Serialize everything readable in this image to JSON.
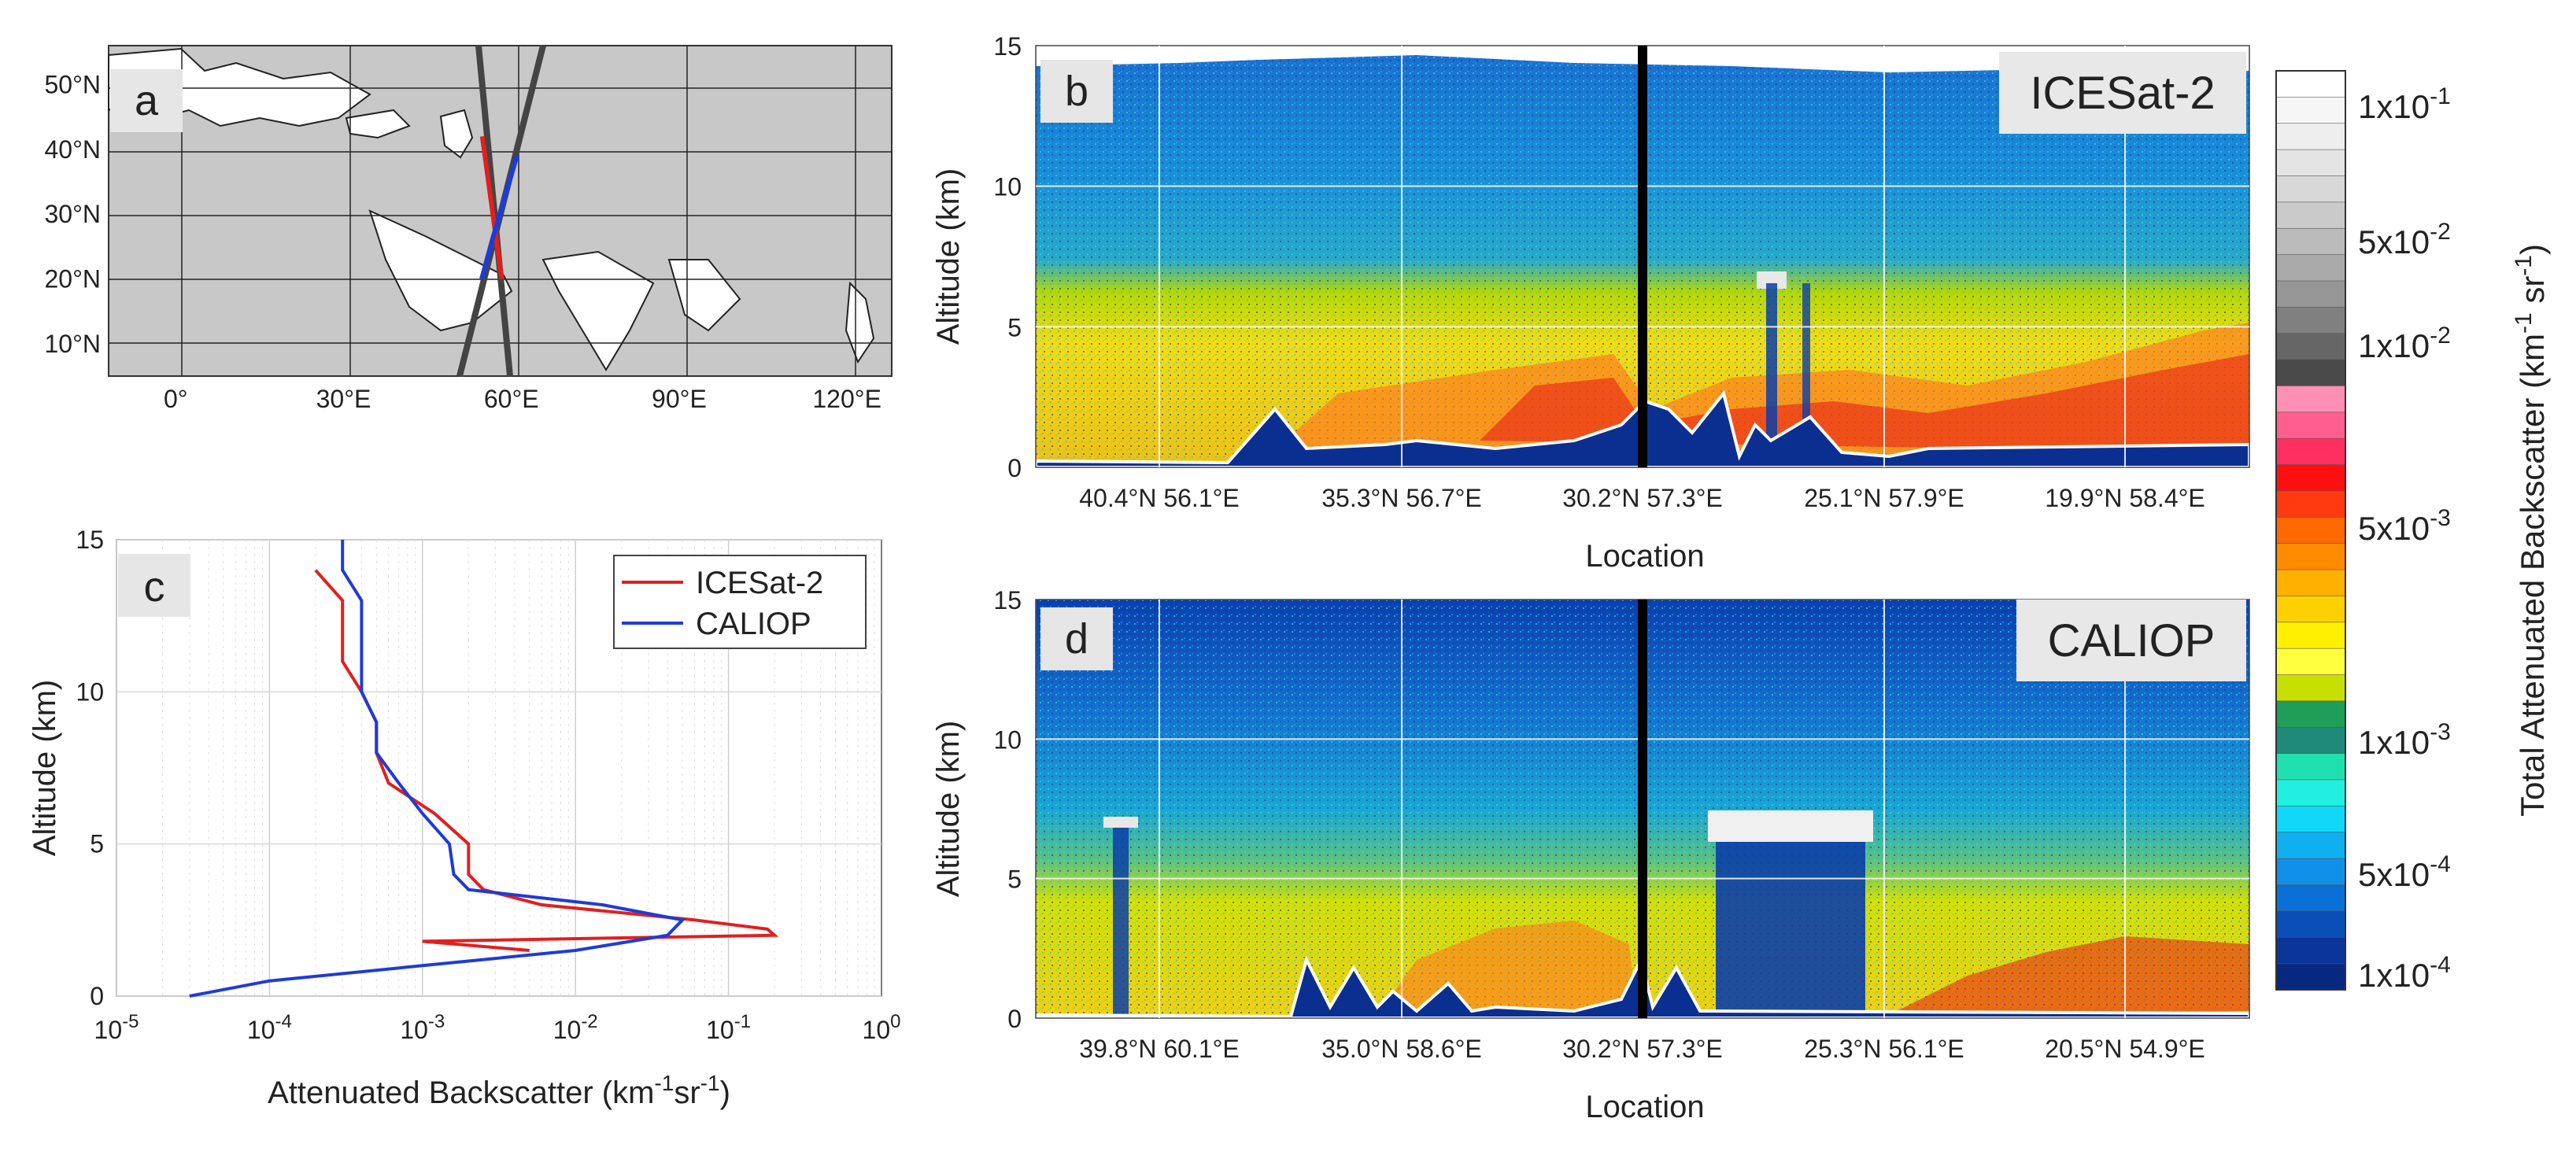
{
  "figure": {
    "panels": {
      "a": "a",
      "b": "b",
      "c": "c",
      "d": "d"
    },
    "instruments": {
      "icesat2": "ICESat-2",
      "caliop": "CALIOP"
    }
  },
  "chart_data": [
    {
      "panel": "a",
      "type": "map",
      "lon_ticks": [
        "0°",
        "30°E",
        "60°E",
        "90°E",
        "120°E"
      ],
      "lat_ticks": [
        "10°N",
        "20°N",
        "30°N",
        "40°N",
        "50°N"
      ],
      "lon_range": [
        -12,
        128
      ],
      "lat_range": [
        5,
        56
      ],
      "tracks": [
        {
          "name": "ICESat-2",
          "color": "#e02020",
          "lat": [
            42,
            35,
            28,
            20
          ],
          "lon": [
            54.8,
            55.9,
            57.0,
            58.3
          ]
        },
        {
          "name": "CALIOP",
          "color": "#1f3bd6",
          "lat": [
            39,
            32,
            26,
            20
          ],
          "lon": [
            61.0,
            58.6,
            56.6,
            54.7
          ]
        }
      ]
    },
    {
      "panel": "b",
      "type": "heatmap",
      "title": "ICESat-2",
      "ylabel": "Altitude (km)",
      "xlabel": "Location",
      "ylim": [
        0,
        15
      ],
      "yticks": [
        0,
        5,
        10,
        15
      ],
      "xticks": [
        "40.4°N 56.1°E",
        "35.3°N 56.7°E",
        "30.2°N 57.3°E",
        "25.1°N 57.9°E",
        "19.9°N 58.4°E"
      ],
      "marker_position": "30.2°N 57.3°E"
    },
    {
      "panel": "c",
      "type": "line",
      "ylabel": "Altitude (km)",
      "xlabel_main": "Attenuated Backscatter (km",
      "xlabel_sup1": "-1",
      "xlabel_mid": "sr",
      "xlabel_sup2": "-1",
      "xlabel_end": ")",
      "xscale": "log",
      "xlim_exp": [
        -5,
        0
      ],
      "xtick_exps": [
        "-5",
        "-4",
        "-3",
        "-2",
        "-1",
        "0"
      ],
      "xtick_base": "10",
      "ylim": [
        0,
        15
      ],
      "yticks": [
        0,
        5,
        10,
        15
      ],
      "legend": [
        "ICESat-2",
        "CALIOP"
      ],
      "series": [
        {
          "name": "ICESat-2",
          "color": "#e02020",
          "altitude": [
            14.0,
            13.0,
            12.0,
            11.0,
            10.0,
            9.0,
            8.0,
            7.0,
            6.0,
            5.0,
            4.0,
            3.5,
            3.0,
            2.5,
            2.2,
            2.0,
            1.8,
            1.5
          ],
          "value": [
            0.0002,
            0.0003,
            0.0003,
            0.0003,
            0.0004,
            0.0005,
            0.0005,
            0.0006,
            0.0012,
            0.002,
            0.002,
            0.0025,
            0.006,
            0.06,
            0.18,
            0.2,
            0.001,
            0.005
          ]
        },
        {
          "name": "CALIOP",
          "color": "#1f3bd6",
          "altitude": [
            15.0,
            14.0,
            13.0,
            12.0,
            11.0,
            10.0,
            9.0,
            8.0,
            7.0,
            6.0,
            5.0,
            4.0,
            3.5,
            3.0,
            2.5,
            2.0,
            1.5,
            1.0,
            0.5,
            0.0
          ],
          "value": [
            0.0003,
            0.0003,
            0.0004,
            0.0004,
            0.0004,
            0.0004,
            0.0005,
            0.0005,
            0.0007,
            0.001,
            0.0015,
            0.0016,
            0.002,
            0.015,
            0.05,
            0.04,
            0.01,
            0.001,
            0.0001,
            3e-05
          ]
        }
      ]
    },
    {
      "panel": "d",
      "type": "heatmap",
      "title": "CALIOP",
      "ylabel": "Altitude (km)",
      "xlabel": "Location",
      "ylim": [
        0,
        15
      ],
      "yticks": [
        0,
        5,
        10,
        15
      ],
      "xticks": [
        "39.8°N 60.1°E",
        "35.0°N 58.6°E",
        "30.2°N 57.3°E",
        "25.3°N 56.1°E",
        "20.5°N 54.9°E"
      ],
      "marker_position": "30.2°N 57.3°E"
    },
    {
      "panel": "colorbar",
      "type": "colorbar",
      "label_main": "Total Attenuated Backscatter (km",
      "label_sup1": "-1",
      "label_mid": " sr",
      "label_sup2": "-1",
      "label_end": ")",
      "tick_labels": [
        {
          "mant": "1x10",
          "exp": "-1"
        },
        {
          "mant": "5x10",
          "exp": "-2"
        },
        {
          "mant": "1x10",
          "exp": "-2"
        },
        {
          "mant": "5x10",
          "exp": "-3"
        },
        {
          "mant": "1x10",
          "exp": "-3"
        },
        {
          "mant": "5x10",
          "exp": "-4"
        },
        {
          "mant": "1x10",
          "exp": "-4"
        }
      ],
      "colors": [
        "#ffffff",
        "#f6f6f6",
        "#eeeeee",
        "#e4e4e4",
        "#d8d8d8",
        "#cacaca",
        "#bbbbbb",
        "#aaaaaa",
        "#969696",
        "#808080",
        "#666666",
        "#4a4a4a",
        "#ff8fb4",
        "#ff5f8f",
        "#ff3060",
        "#ff1010",
        "#ff3a10",
        "#ff6a00",
        "#ff8c00",
        "#ffb000",
        "#ffd000",
        "#fff000",
        "#ffff40",
        "#c8e000",
        "#1e9e58",
        "#1f8a7a",
        "#20e0b0",
        "#20f0e0",
        "#10d8f8",
        "#10b0f0",
        "#1090e8",
        "#0a70d8",
        "#0a4fb8",
        "#0a3498",
        "#082880"
      ]
    }
  ]
}
